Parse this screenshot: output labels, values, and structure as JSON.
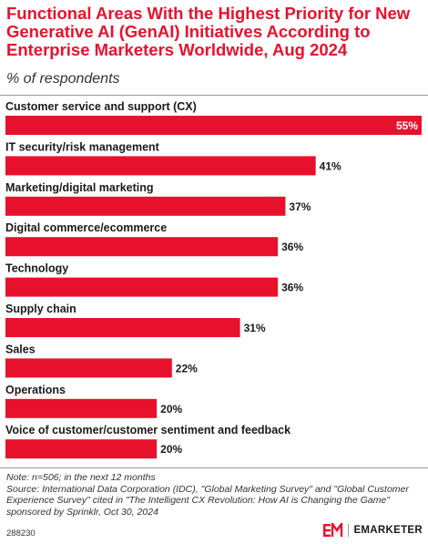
{
  "header": {
    "title": "Functional Areas With the Highest Priority for New Generative AI (GenAI) Initiatives According to Enterprise Marketers Worldwide, Aug 2024",
    "subtitle": "% of respondents"
  },
  "chart_data": {
    "type": "bar",
    "orientation": "horizontal",
    "categories": [
      "Customer service and support (CX)",
      "IT security/risk management",
      "Marketing/digital marketing",
      "Digital commerce/ecommerce",
      "Technology",
      "Supply chain",
      "Sales",
      "Operations",
      "Voice of customer/customer sentiment and feedback"
    ],
    "values": [
      55,
      41,
      37,
      36,
      36,
      31,
      22,
      20,
      20
    ],
    "value_labels": [
      "55%",
      "41%",
      "37%",
      "36%",
      "36%",
      "31%",
      "22%",
      "20%",
      "20%"
    ],
    "xlim": [
      0,
      55
    ],
    "bar_color": "#e8112d",
    "grid": false,
    "legend": "none"
  },
  "footer": {
    "note": "Note: n=506; in the next 12 months",
    "source": "Source: International Data Corporation (IDC), \"Global Marketing Survey\" and \"Global Customer Experience Survey\" cited in \"The Intelligent CX Revolution: How AI is Changing the Game\" sponsored by Sprinklr, Oct 30, 2024",
    "chart_id": "288230",
    "brand": "EMARKETER",
    "logo_icon": "em-logo-icon"
  }
}
